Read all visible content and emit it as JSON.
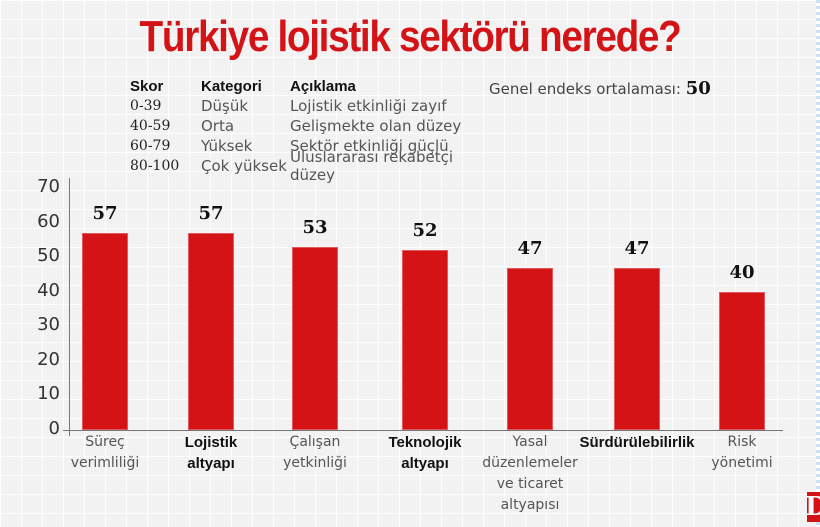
{
  "title": "Türkiye lojistik sektörü nerede?",
  "legend": {
    "headers": [
      "Skor",
      "Kategori",
      "Açıklama"
    ],
    "rows": [
      {
        "score": "0-39",
        "category": "Düşük",
        "description": "Lojistik etkinliği zayıf"
      },
      {
        "score": "40-59",
        "category": "Orta",
        "description": "Gelişmekte olan düzey"
      },
      {
        "score": "60-79",
        "category": "Yüksek",
        "description": "Sektör etkinliği güçlü"
      },
      {
        "score": "80-100",
        "category": "Çok yüksek",
        "description": "Uluslararası rekabetçi düzey"
      }
    ]
  },
  "average": {
    "label": "Genel endeks ortalaması:",
    "value": "50"
  },
  "logo": "D",
  "colors": {
    "bar": "#d41317",
    "title": "#d41317",
    "background": "#f2f2f2"
  },
  "chart_data": {
    "type": "bar",
    "title": "Türkiye lojistik sektörü nerede?",
    "xlabel": "",
    "ylabel": "",
    "ylim": [
      0,
      70
    ],
    "yticks": [
      0,
      10,
      20,
      30,
      40,
      50,
      60,
      70
    ],
    "grid": true,
    "legend_position": "none",
    "categories": [
      "Süreç verimliliği",
      "Lojistik altyapı",
      "Çalışan yetkinliği",
      "Teknolojik altyapı",
      "Yasal düzenlemeler ve ticaret altyapısı",
      "Sürdürülebilirlik",
      "Risk yönetimi"
    ],
    "category_lines": [
      [
        "Süreç",
        "verimliliği"
      ],
      [
        "Lojistik",
        "altyapı"
      ],
      [
        "Çalışan",
        "yetkinliği"
      ],
      [
        "Teknolojik",
        "altyapı"
      ],
      [
        "Yasal",
        "düzenlemeler",
        "ve ticaret",
        "altyapısı"
      ],
      [
        "Sürdürülebilirlik"
      ],
      [
        "Risk",
        "yönetimi"
      ]
    ],
    "bold_categories": [
      false,
      true,
      false,
      true,
      false,
      true,
      false
    ],
    "values": [
      57,
      57,
      53,
      52,
      47,
      47,
      40
    ],
    "value_labels": [
      "57",
      "57",
      "53",
      "52",
      "47",
      "47",
      "40"
    ],
    "annotations": [
      "Genel endeks ortalaması: 50"
    ]
  }
}
